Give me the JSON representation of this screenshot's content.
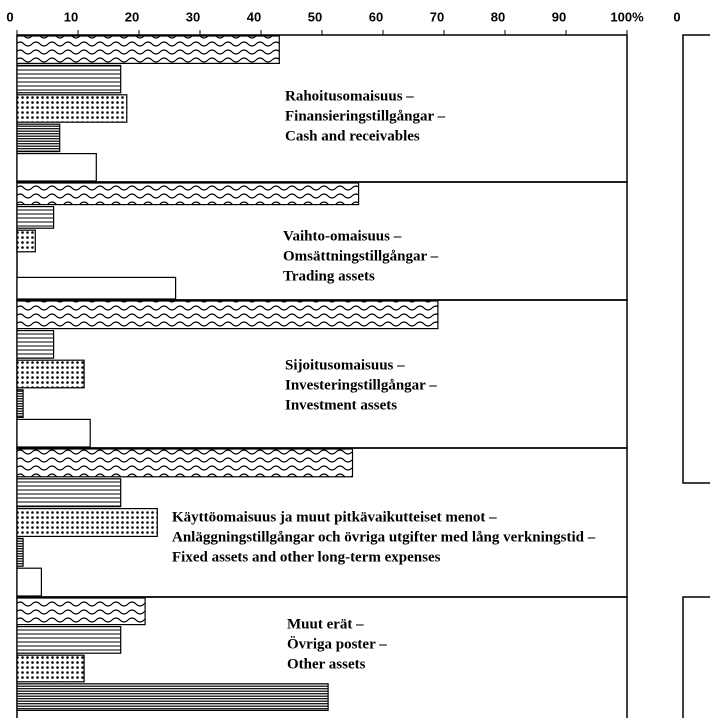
{
  "chart_data": {
    "type": "barh",
    "categories": [
      [
        "Rahoitusomaisuus –",
        "Finansieringstillgångar –",
        "Cash and receivables"
      ],
      [
        "Vaihto-omaisuus –",
        "Omsättningstillgångar –",
        "Trading assets"
      ],
      [
        "Sijoitusomaisuus –",
        "Investeringstillgångar –",
        "Investment assets"
      ],
      [
        "Käyttöomaisuus ja muut pitkävaikutteiset menot –",
        "Anläggningstillgångar och övriga utgifter med lång verkningstid –",
        "Fixed assets and other long-term expenses"
      ],
      [
        "Muut erät –",
        "Övriga poster –",
        "Other assets"
      ]
    ],
    "series": [
      {
        "pattern": "wavy",
        "values": [
          43,
          56,
          69,
          55,
          21
        ]
      },
      {
        "pattern": "lines",
        "values": [
          17,
          6,
          6,
          17,
          17
        ]
      },
      {
        "pattern": "dots",
        "values": [
          18,
          3,
          11,
          23,
          11
        ]
      },
      {
        "pattern": "dense-lines",
        "values": [
          7,
          0,
          1,
          1,
          51
        ]
      },
      {
        "pattern": "blank",
        "values": [
          13,
          26,
          12,
          4,
          null
        ]
      }
    ],
    "xlim": [
      0,
      100
    ],
    "xticks": [
      0,
      10,
      20,
      30,
      40,
      50,
      60,
      70,
      80,
      90,
      {
        "value": 100,
        "label": "100%"
      }
    ]
  },
  "cropped_chart": {
    "xticks": [
      0
    ]
  }
}
